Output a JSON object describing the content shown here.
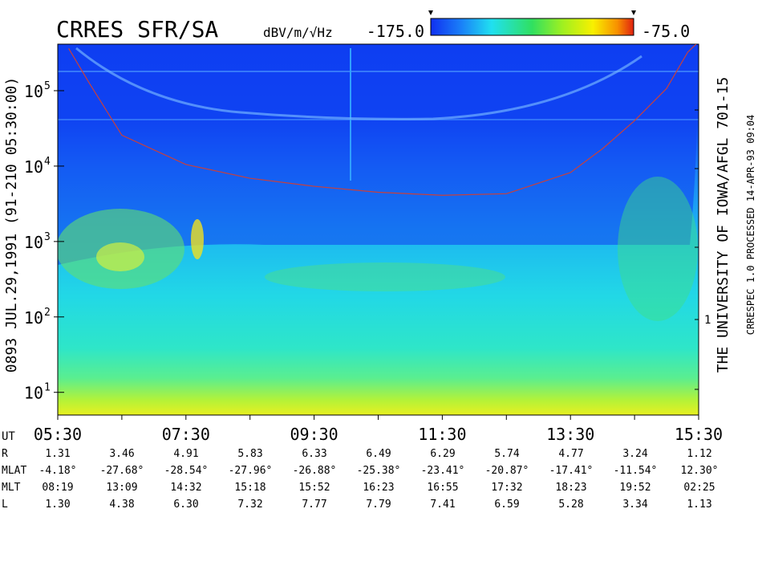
{
  "chart_data": {
    "type": "spectrogram",
    "title": "CRRES SFR/SA",
    "units": "dBV/m/√Hz",
    "colorbar": {
      "lim": [
        -175,
        -75
      ],
      "ticks": [
        {
          "value": -175,
          "label": "-175.0"
        },
        {
          "value": -75,
          "label": "-75.0"
        }
      ]
    },
    "left_caption": "0893    JUL.29,1991    (91-210 05:30:00)",
    "right_caption": "THE UNIVERSITY OF IOWA/AFGL 701-15",
    "right_note": "CRRESPEC 1.0    PROCESSED 14-APR-93  09:04",
    "right_axis_label": "1",
    "log_y": true,
    "xlim": [
      5.5,
      15.5
    ],
    "ylim": [
      5,
      414000
    ],
    "xticks": [
      {
        "value": 5.5,
        "label": "05:30"
      },
      {
        "value": 7.5,
        "label": "07:30"
      },
      {
        "value": 9.5,
        "label": "09:30"
      },
      {
        "value": 11.5,
        "label": "11:30"
      },
      {
        "value": 13.5,
        "label": "13:30"
      },
      {
        "value": 15.5,
        "label": "15:30"
      }
    ],
    "xminor": [
      6.5,
      8.5,
      10.5,
      12.5,
      14.5
    ],
    "yticks": [
      {
        "value": 10,
        "label": "10",
        "exponent": "1"
      },
      {
        "value": 100,
        "label": "10",
        "exponent": "2"
      },
      {
        "value": 1000,
        "label": "10",
        "exponent": "3"
      },
      {
        "value": 10000,
        "label": "10",
        "exponent": "4"
      },
      {
        "value": 100000,
        "label": "10",
        "exponent": "5"
      }
    ],
    "series": [
      {
        "color": "#c8403c",
        "x": [
          5.67,
          6.0,
          6.5,
          7.5,
          8.5,
          9.5,
          10.5,
          11.5,
          12.5,
          13.5,
          14.0,
          14.5,
          15.0,
          15.33,
          15.46
        ],
        "values": [
          363000,
          123000,
          25700,
          10500,
          6900,
          5400,
          4500,
          4100,
          4300,
          8200,
          17000,
          40000,
          107000,
          324000,
          414000
        ]
      }
    ],
    "ephemeris": {
      "ut_label": "UT",
      "rows": [
        {
          "label": "R",
          "values": [
            "1.31",
            "3.46",
            "4.91",
            "5.83",
            "6.33",
            "6.49",
            "6.29",
            "5.74",
            "4.77",
            "3.24",
            "1.12"
          ]
        },
        {
          "label": "MLAT",
          "values": [
            "-4.18°",
            "-27.68°",
            "-28.54°",
            "-27.96°",
            "-26.88°",
            "-25.38°",
            "-23.41°",
            "-20.87°",
            "-17.41°",
            "-11.54°",
            "12.30°"
          ]
        },
        {
          "label": "MLT",
          "values": [
            "08:19",
            "13:09",
            "14:32",
            "15:18",
            "15:52",
            "16:23",
            "16:55",
            "17:32",
            "18:23",
            "19:52",
            "02:25"
          ]
        },
        {
          "label": "L",
          "values": [
            "1.30",
            "4.38",
            "6.30",
            "7.32",
            "7.77",
            "7.79",
            "7.41",
            "6.59",
            "5.28",
            "3.34",
            "1.13"
          ]
        }
      ]
    }
  }
}
